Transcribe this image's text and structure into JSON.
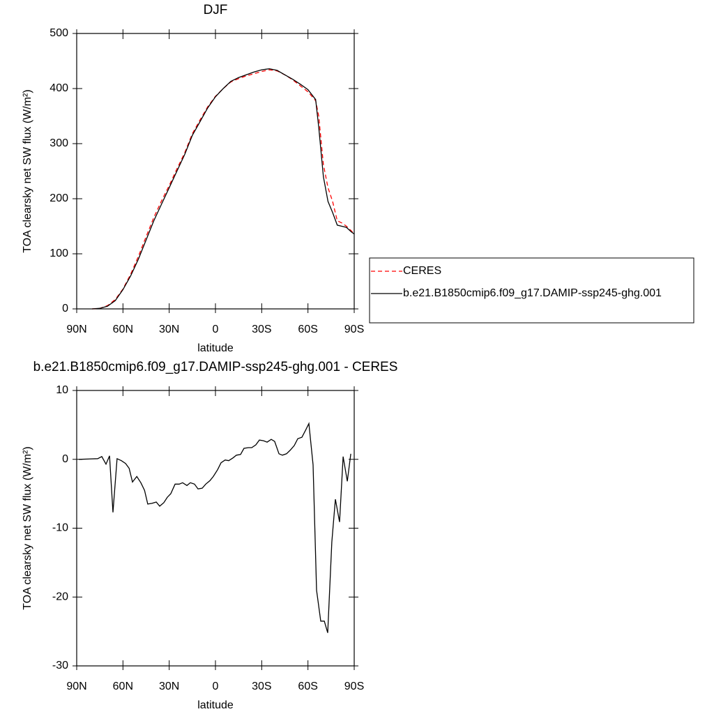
{
  "chart_data": [
    {
      "type": "line",
      "title": "DJF",
      "xlabel": "latitude",
      "ylabel": "TOA clearsky net SW flux (W/m²)",
      "x": [
        80,
        75,
        70,
        65,
        60,
        55,
        50,
        45,
        40,
        35,
        30,
        25,
        20,
        15,
        10,
        5,
        0,
        -5,
        -10,
        -15,
        -20,
        -25,
        -30,
        -35,
        -40,
        -45,
        -50,
        -55,
        -60,
        -65,
        -67,
        -70,
        -73,
        -76,
        -79,
        -82,
        -85,
        -88,
        -90
      ],
      "series": [
        {
          "name": "CERES",
          "color": "#ff0000",
          "line_style": "dashed",
          "values": [
            0,
            1,
            6,
            17,
            36,
            63,
            95,
            131,
            166,
            196,
            224,
            254,
            283,
            318,
            343,
            367,
            386,
            400,
            412,
            418,
            423,
            427,
            431,
            434,
            432,
            425,
            416,
            405,
            394,
            378,
            350,
            262,
            220,
            195,
            160,
            156,
            150,
            142,
            136
          ]
        },
        {
          "name": "b.e21.B1850cmip6.f09_g17.DAMIP-ssp245-ghg.001",
          "color": "#000000",
          "line_style": "solid",
          "values": [
            0,
            1,
            5,
            15,
            35,
            60,
            90,
            125,
            160,
            190,
            220,
            250,
            280,
            315,
            340,
            365,
            385,
            400,
            413,
            420,
            425,
            430,
            434,
            436,
            433,
            425,
            417,
            408,
            398,
            380,
            330,
            240,
            195,
            175,
            152,
            150,
            148,
            140,
            136
          ]
        }
      ],
      "xlim": [
        90,
        -90
      ],
      "xticks": [
        {
          "value": 90,
          "label": "90N"
        },
        {
          "value": 60,
          "label": "60N"
        },
        {
          "value": 30,
          "label": "30N"
        },
        0,
        {
          "value": -30,
          "label": "30S"
        },
        {
          "value": -60,
          "label": "60S"
        },
        {
          "value": -90,
          "label": "90S"
        }
      ],
      "ylim": [
        0,
        500
      ],
      "yticks": [
        0,
        100,
        200,
        300,
        400,
        500
      ],
      "legend": "right"
    },
    {
      "type": "line",
      "title": "b.e21.B1850cmip6.f09_g17.DAMIP-ssp245-ghg.001 - CERES",
      "xlabel": "latitude",
      "ylabel": "TOA clearsky net SW flux (W/m²)",
      "x": [
        88.6,
        76.4,
        73.7,
        71,
        68.7,
        66.5,
        63.8,
        61,
        58.3,
        56,
        53.8,
        51,
        48.4,
        46,
        43.9,
        41.2,
        38.4,
        36.2,
        33.5,
        31.2,
        29,
        26.2,
        23.5,
        21.3,
        18.5,
        16.3,
        13.6,
        11.3,
        8.6,
        6.3,
        3.6,
        1.4,
        -1.4,
        -3.6,
        -6.3,
        -8.6,
        -11.3,
        -13.6,
        -16.3,
        -18.5,
        -21.3,
        -23.5,
        -26.2,
        -28.5,
        -31.2,
        -33.5,
        -36.2,
        -38.4,
        -41.2,
        -43.4,
        -46.1,
        -48.4,
        -51.1,
        -53.4,
        -56.1,
        -58.4,
        -60.6,
        -63.3,
        -65.6,
        -68.3,
        -70.6,
        -72.8,
        -75.5,
        -77.8,
        -80.5,
        -82.8,
        -85.5,
        -87.8
      ],
      "values": [
        0,
        0.1,
        0.4,
        -0.7,
        0.5,
        -7.7,
        0.1,
        -0.2,
        -0.6,
        -1.3,
        -3.3,
        -2.5,
        -3.4,
        -4.5,
        -6.5,
        -6.4,
        -6.2,
        -6.8,
        -6.3,
        -5.5,
        -5,
        -3.6,
        -3.6,
        -3.4,
        -3.8,
        -3.4,
        -3.6,
        -4.3,
        -4.2,
        -3.6,
        -3.1,
        -2.5,
        -1.5,
        -0.5,
        -0.1,
        -0.2,
        0.2,
        0.6,
        0.7,
        1.6,
        1.7,
        1.7,
        2.1,
        2.8,
        2.7,
        2.5,
        2.9,
        2.6,
        0.8,
        0.6,
        0.8,
        1.3,
        2,
        3,
        3.2,
        4.2,
        5.2,
        -0.8,
        -19,
        -23.5,
        -23.5,
        -25.2,
        -12,
        -5.8,
        -9.1,
        0.4,
        -3.2,
        0.8
      ],
      "color": "#000000",
      "xlim": [
        90,
        -90
      ],
      "xticks": [
        {
          "value": 90,
          "label": "90N"
        },
        {
          "value": 60,
          "label": "60N"
        },
        {
          "value": 30,
          "label": "30N"
        },
        0,
        {
          "value": -30,
          "label": "30S"
        },
        {
          "value": -60,
          "label": "60S"
        },
        {
          "value": -90,
          "label": "90S"
        }
      ],
      "ylim": [
        -30,
        10
      ],
      "yticks": [
        -30,
        -20,
        -10,
        0,
        10
      ]
    }
  ]
}
